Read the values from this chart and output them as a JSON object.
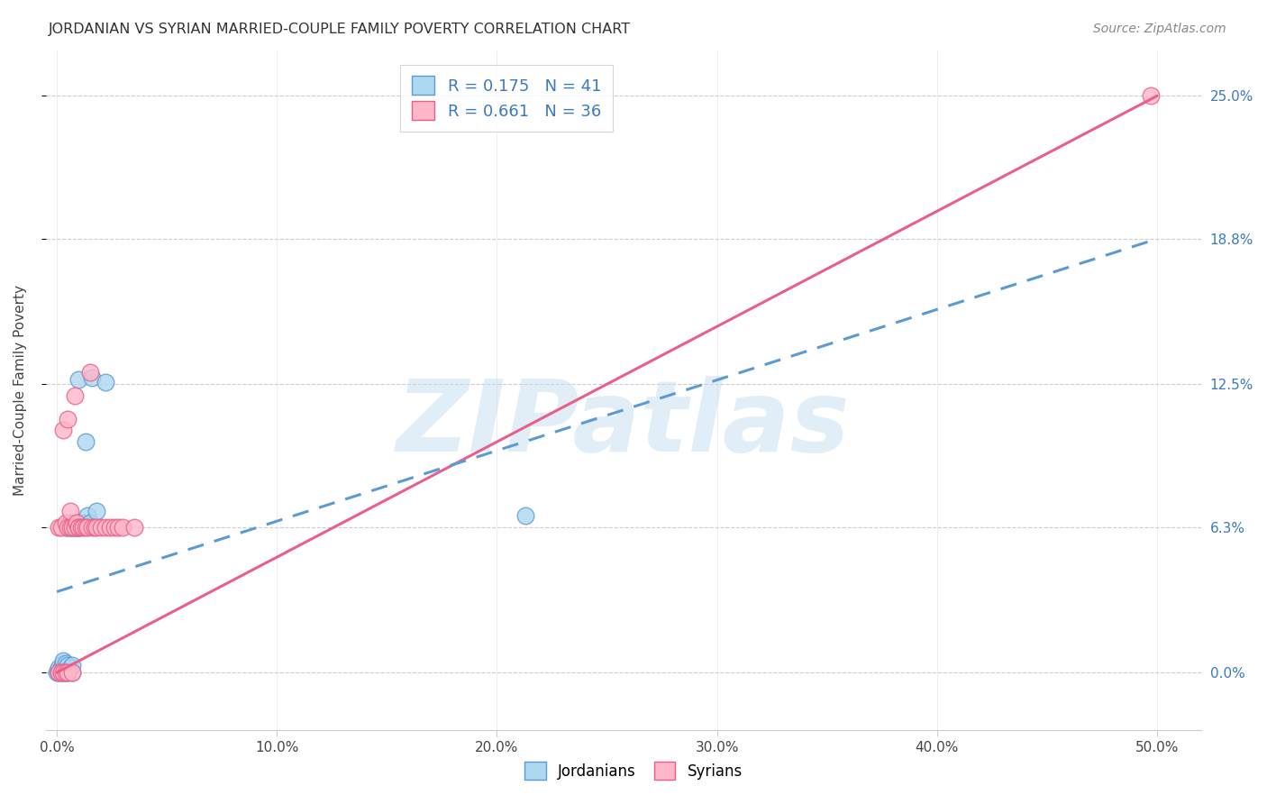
{
  "title": "JORDANIAN VS SYRIAN MARRIED-COUPLE FAMILY POVERTY CORRELATION CHART",
  "source": "Source: ZipAtlas.com",
  "xlabel_tick_vals": [
    0.0,
    0.1,
    0.2,
    0.3,
    0.4,
    0.5
  ],
  "xlabel_tick_labels": [
    "0.0%",
    "10.0%",
    "20.0%",
    "30.0%",
    "40.0%",
    "50.0%"
  ],
  "ylabel": "Married-Couple Family Poverty",
  "ylabel_tick_vals": [
    0.0,
    0.063,
    0.125,
    0.188,
    0.25
  ],
  "ylabel_tick_labels": [
    "0.0%",
    "6.3%",
    "12.5%",
    "18.8%",
    "25.0%"
  ],
  "xlim": [
    -0.005,
    0.52
  ],
  "ylim": [
    -0.025,
    0.27
  ],
  "watermark": "ZIPatlas",
  "jordanian_R": 0.175,
  "jordanian_N": 41,
  "syrian_R": 0.661,
  "syrian_N": 36,
  "blue_dot_fill": "#add8f0",
  "blue_dot_edge": "#5b9bd5",
  "pink_dot_fill": "#ffb6c8",
  "pink_dot_edge": "#e8608a",
  "blue_line_color": "#5b9bd5",
  "pink_line_color": "#e8608a",
  "background_color": "#ffffff",
  "grid_color": "#cccccc",
  "jord_x": [
    0.0,
    0.001,
    0.001,
    0.001,
    0.002,
    0.002,
    0.002,
    0.003,
    0.003,
    0.003,
    0.003,
    0.004,
    0.004,
    0.004,
    0.004,
    0.005,
    0.005,
    0.005,
    0.005,
    0.006,
    0.006,
    0.006,
    0.007,
    0.007,
    0.007,
    0.008,
    0.008,
    0.008,
    0.009,
    0.009,
    0.01,
    0.01,
    0.011,
    0.012,
    0.013,
    0.014,
    0.015,
    0.016,
    0.018,
    0.022,
    0.213
  ],
  "jord_y": [
    0.0,
    0.0,
    0.001,
    0.002,
    0.0,
    0.001,
    0.002,
    0.0,
    0.001,
    0.004,
    0.005,
    0.0,
    0.002,
    0.004,
    0.063,
    0.0,
    0.003,
    0.063,
    0.064,
    0.002,
    0.063,
    0.065,
    0.0,
    0.003,
    0.063,
    0.063,
    0.064,
    0.065,
    0.063,
    0.065,
    0.063,
    0.127,
    0.065,
    0.065,
    0.1,
    0.068,
    0.065,
    0.128,
    0.07,
    0.126,
    0.068
  ],
  "syr_x": [
    0.001,
    0.001,
    0.002,
    0.002,
    0.003,
    0.003,
    0.004,
    0.004,
    0.005,
    0.005,
    0.005,
    0.006,
    0.006,
    0.007,
    0.007,
    0.008,
    0.008,
    0.009,
    0.01,
    0.01,
    0.011,
    0.012,
    0.013,
    0.014,
    0.015,
    0.016,
    0.017,
    0.018,
    0.02,
    0.022,
    0.024,
    0.026,
    0.028,
    0.03,
    0.035,
    0.497
  ],
  "syr_y": [
    0.0,
    0.063,
    0.0,
    0.063,
    0.0,
    0.105,
    0.0,
    0.065,
    0.0,
    0.063,
    0.11,
    0.063,
    0.07,
    0.0,
    0.063,
    0.063,
    0.12,
    0.065,
    0.063,
    0.063,
    0.063,
    0.063,
    0.063,
    0.063,
    0.13,
    0.063,
    0.063,
    0.063,
    0.063,
    0.063,
    0.063,
    0.063,
    0.063,
    0.063,
    0.063,
    0.25
  ],
  "jord_line_x": [
    0.0,
    0.5
  ],
  "jord_line_y": [
    0.035,
    0.188
  ],
  "syr_line_x": [
    0.0,
    0.5
  ],
  "syr_line_y": [
    0.0,
    0.25
  ]
}
